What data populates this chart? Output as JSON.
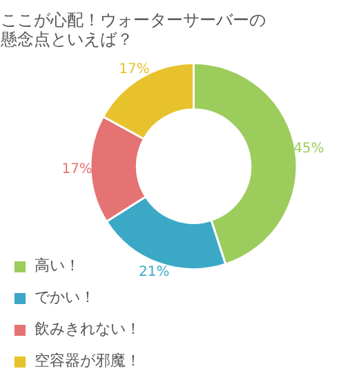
{
  "chart_data": {
    "type": "donut",
    "title": "ここが心配！ウォーターサーバーの懸念点といえば？",
    "categories": [
      "高い！",
      "でかい！",
      "飲みきれない！",
      "空容器が邪魔！"
    ],
    "values": [
      45,
      21,
      17,
      17
    ],
    "colors": [
      "#9ccc5c",
      "#3ba9c6",
      "#e57373",
      "#e8c22c"
    ],
    "value_labels": [
      "45%",
      "21%",
      "17%",
      "17%"
    ],
    "legend": "bottom"
  }
}
